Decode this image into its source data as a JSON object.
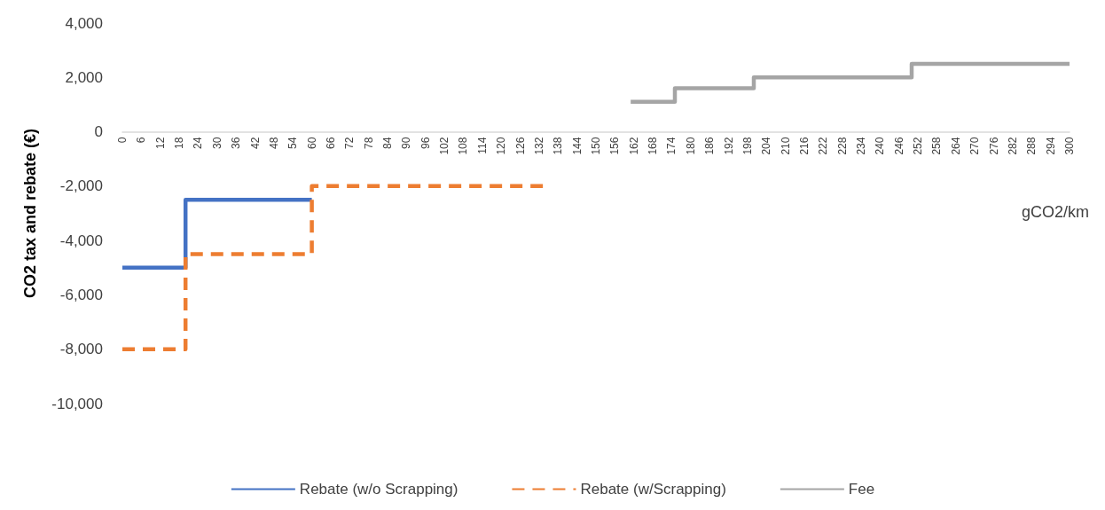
{
  "chart_data": {
    "type": "step",
    "xlabel": "gCO2/km",
    "ylabel": "CO2 tax and rebate (€)",
    "xlim": [
      0,
      300
    ],
    "xticks": [
      0,
      6,
      12,
      18,
      24,
      30,
      36,
      42,
      48,
      54,
      60,
      66,
      72,
      78,
      84,
      90,
      96,
      102,
      108,
      114,
      120,
      126,
      132,
      138,
      144,
      150,
      156,
      162,
      168,
      174,
      180,
      186,
      192,
      198,
      204,
      210,
      216,
      222,
      228,
      234,
      240,
      246,
      252,
      258,
      264,
      270,
      276,
      282,
      288,
      294,
      300
    ],
    "ylim": [
      -10000,
      4000
    ],
    "yticks": [
      {
        "value": -10000,
        "label": "-10,000"
      },
      {
        "value": -8000,
        "label": "-8,000"
      },
      {
        "value": -6000,
        "label": "-6,000"
      },
      {
        "value": -4000,
        "label": "-4,000"
      },
      {
        "value": -2000,
        "label": "-2,000"
      },
      0,
      {
        "value": 2000,
        "label": "2,000"
      },
      {
        "value": 4000,
        "label": "4,000"
      }
    ],
    "grid": false,
    "legend": "bottom",
    "marker": "none",
    "series": [
      {
        "name": "Rebate (w/o Scrapping)",
        "color": "#4472c4",
        "line_style": "solid",
        "x": [
          0,
          20,
          60
        ],
        "values": [
          -5000,
          -2500,
          -2500
        ]
      },
      {
        "name": "Rebate (w/Scrapping)",
        "color": "#ed7d31",
        "line_style": "dashed",
        "x": [
          0,
          20,
          60,
          135
        ],
        "values": [
          -8000,
          -4500,
          -2000,
          -2000
        ]
      },
      {
        "name": "Fee",
        "color": "#a5a5a5",
        "line_style": "solid",
        "x": [
          161,
          175,
          200,
          250,
          300
        ],
        "values": [
          1100,
          1600,
          2000,
          2500,
          2500
        ]
      }
    ]
  }
}
